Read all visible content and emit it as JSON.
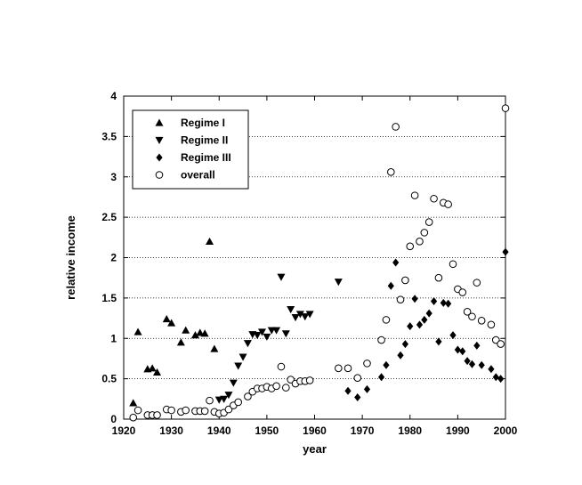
{
  "chart_data": {
    "type": "scatter",
    "title": "",
    "xlabel": "year",
    "ylabel": "relative income",
    "xlim": [
      1920,
      2000
    ],
    "ylim": [
      0,
      4
    ],
    "xticks": [
      1920,
      1930,
      1940,
      1950,
      1960,
      1970,
      1980,
      1990,
      2000
    ],
    "yticks": [
      0,
      0.5,
      1,
      1.5,
      2,
      2.5,
      3,
      3.5,
      4
    ],
    "grid": "horizontal dotted",
    "legend_position": "top-left",
    "series": [
      {
        "name": "Regime I",
        "marker": "triangle-up",
        "color": "#000000",
        "points": [
          [
            1922,
            0.2
          ],
          [
            1923,
            1.08
          ],
          [
            1925,
            0.62
          ],
          [
            1926,
            0.63
          ],
          [
            1927,
            0.58
          ],
          [
            1929,
            1.24
          ],
          [
            1930,
            1.19
          ],
          [
            1932,
            0.95
          ],
          [
            1933,
            1.1
          ],
          [
            1935,
            1.04
          ],
          [
            1936,
            1.07
          ],
          [
            1937,
            1.06
          ],
          [
            1938,
            2.2
          ],
          [
            1939,
            0.87
          ]
        ]
      },
      {
        "name": "Regime II",
        "marker": "triangle-down",
        "color": "#000000",
        "points": [
          [
            1940,
            0.24
          ],
          [
            1941,
            0.25
          ],
          [
            1942,
            0.3
          ],
          [
            1943,
            0.45
          ],
          [
            1944,
            0.66
          ],
          [
            1945,
            0.77
          ],
          [
            1946,
            0.94
          ],
          [
            1947,
            1.05
          ],
          [
            1948,
            1.04
          ],
          [
            1949,
            1.08
          ],
          [
            1950,
            1.02
          ],
          [
            1951,
            1.1
          ],
          [
            1952,
            1.1
          ],
          [
            1953,
            1.76
          ],
          [
            1954,
            1.06
          ],
          [
            1955,
            1.36
          ],
          [
            1956,
            1.26
          ],
          [
            1957,
            1.3
          ],
          [
            1958,
            1.27
          ],
          [
            1959,
            1.3
          ],
          [
            1965,
            1.7
          ]
        ]
      },
      {
        "name": "Regime III",
        "marker": "diamond",
        "color": "#000000",
        "points": [
          [
            1967,
            0.35
          ],
          [
            1969,
            0.27
          ],
          [
            1971,
            0.37
          ],
          [
            1974,
            0.52
          ],
          [
            1975,
            0.67
          ],
          [
            1976,
            1.65
          ],
          [
            1977,
            1.94
          ],
          [
            1978,
            0.79
          ],
          [
            1979,
            0.93
          ],
          [
            1980,
            1.15
          ],
          [
            1981,
            1.49
          ],
          [
            1982,
            1.17
          ],
          [
            1983,
            1.23
          ],
          [
            1984,
            1.31
          ],
          [
            1985,
            1.46
          ],
          [
            1986,
            0.96
          ],
          [
            1987,
            1.44
          ],
          [
            1988,
            1.43
          ],
          [
            1989,
            1.04
          ],
          [
            1990,
            0.86
          ],
          [
            1991,
            0.84
          ],
          [
            1992,
            0.72
          ],
          [
            1993,
            0.68
          ],
          [
            1994,
            0.91
          ],
          [
            1995,
            0.67
          ],
          [
            1997,
            0.62
          ],
          [
            1998,
            0.52
          ],
          [
            1999,
            0.5
          ],
          [
            2000,
            2.07
          ]
        ]
      },
      {
        "name": "overall",
        "marker": "circle-open",
        "color": "#000000",
        "points": [
          [
            1922,
            0.02
          ],
          [
            1923,
            0.11
          ],
          [
            1925,
            0.05
          ],
          [
            1926,
            0.05
          ],
          [
            1927,
            0.05
          ],
          [
            1929,
            0.12
          ],
          [
            1930,
            0.11
          ],
          [
            1932,
            0.09
          ],
          [
            1933,
            0.11
          ],
          [
            1935,
            0.1
          ],
          [
            1936,
            0.1
          ],
          [
            1937,
            0.1
          ],
          [
            1938,
            0.23
          ],
          [
            1939,
            0.09
          ],
          [
            1940,
            0.07
          ],
          [
            1941,
            0.08
          ],
          [
            1942,
            0.12
          ],
          [
            1943,
            0.17
          ],
          [
            1944,
            0.21
          ],
          [
            1946,
            0.28
          ],
          [
            1947,
            0.34
          ],
          [
            1948,
            0.38
          ],
          [
            1949,
            0.38
          ],
          [
            1950,
            0.4
          ],
          [
            1951,
            0.38
          ],
          [
            1952,
            0.41
          ],
          [
            1953,
            0.65
          ],
          [
            1954,
            0.39
          ],
          [
            1955,
            0.49
          ],
          [
            1956,
            0.44
          ],
          [
            1957,
            0.47
          ],
          [
            1958,
            0.47
          ],
          [
            1959,
            0.48
          ],
          [
            1965,
            0.63
          ],
          [
            1967,
            0.63
          ],
          [
            1969,
            0.51
          ],
          [
            1971,
            0.69
          ],
          [
            1974,
            0.98
          ],
          [
            1975,
            1.23
          ],
          [
            1976,
            3.06
          ],
          [
            1977,
            3.62
          ],
          [
            1978,
            1.48
          ],
          [
            1979,
            1.72
          ],
          [
            1980,
            2.14
          ],
          [
            1981,
            2.77
          ],
          [
            1982,
            2.2
          ],
          [
            1983,
            2.31
          ],
          [
            1984,
            2.44
          ],
          [
            1985,
            2.73
          ],
          [
            1986,
            1.75
          ],
          [
            1987,
            2.68
          ],
          [
            1988,
            2.66
          ],
          [
            1989,
            1.92
          ],
          [
            1990,
            1.61
          ],
          [
            1991,
            1.57
          ],
          [
            1992,
            1.33
          ],
          [
            1993,
            1.27
          ],
          [
            1994,
            1.69
          ],
          [
            1995,
            1.22
          ],
          [
            1997,
            1.17
          ],
          [
            1998,
            0.98
          ],
          [
            1999,
            0.93
          ],
          [
            2000,
            3.85
          ]
        ]
      }
    ]
  }
}
